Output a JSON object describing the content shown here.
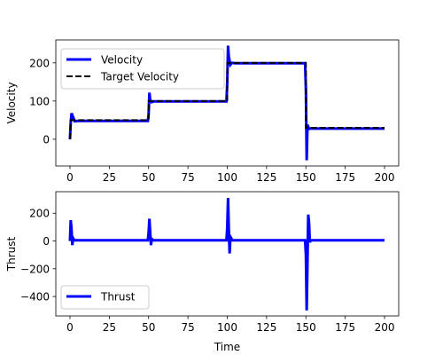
{
  "chart_data": [
    {
      "type": "line",
      "title": "",
      "xlabel": "",
      "ylabel": "Velocity",
      "xlim": [
        -9,
        209
      ],
      "ylim": [
        -70,
        260
      ],
      "xticks": [
        0,
        25,
        50,
        75,
        100,
        125,
        150,
        175,
        200
      ],
      "yticks": [
        0,
        100,
        200
      ],
      "grid": false,
      "legend": {
        "placement": "upper-left"
      },
      "series": [
        {
          "name": "Velocity",
          "color": "#0000ff",
          "style": "solid",
          "x": [
            0,
            0.5,
            1,
            2,
            3,
            5,
            10,
            20,
            30,
            40,
            49.5,
            50,
            50.5,
            51,
            52,
            53,
            55,
            60,
            70,
            80,
            90,
            99.5,
            100,
            100.5,
            101,
            102,
            103,
            105,
            110,
            120,
            130,
            140,
            149.5,
            150,
            150.5,
            151,
            152,
            153,
            155,
            160,
            170,
            180,
            190,
            200
          ],
          "y": [
            0,
            45,
            68,
            58,
            47,
            48,
            48,
            48,
            48,
            48,
            48,
            65,
            122,
            103,
            97,
            99,
            99,
            99,
            99,
            99,
            99,
            99,
            150,
            245,
            215,
            195,
            200,
            199,
            199,
            199,
            199,
            199,
            199,
            130,
            -55,
            38,
            27,
            28,
            28,
            28,
            28,
            28,
            28,
            28
          ]
        },
        {
          "name": "Target Velocity",
          "color": "#000000",
          "style": "dashed",
          "x": [
            0,
            0.5,
            50,
            50,
            100,
            100,
            150,
            150,
            200
          ],
          "y": [
            0,
            50,
            50,
            100,
            100,
            200,
            200,
            30,
            30
          ]
        }
      ]
    },
    {
      "type": "line",
      "title": "",
      "xlabel": "Time",
      "ylabel": "Thrust",
      "xlim": [
        -9,
        209
      ],
      "ylim": [
        -540,
        355
      ],
      "xticks": [
        0,
        25,
        50,
        75,
        100,
        125,
        150,
        175,
        200
      ],
      "yticks": [
        -400,
        -200,
        0,
        200
      ],
      "grid": false,
      "legend": {
        "placement": "lower-left"
      },
      "series": [
        {
          "name": "Thrust",
          "color": "#0000ff",
          "style": "solid",
          "x": [
            0,
            0.5,
            1,
            1.5,
            2,
            2.5,
            3,
            5,
            10,
            20,
            30,
            40,
            49.5,
            50,
            50.5,
            51,
            51.5,
            52,
            53,
            55,
            60,
            70,
            80,
            90,
            99.5,
            100,
            100.5,
            101,
            101.5,
            102,
            102.5,
            103,
            105,
            110,
            120,
            130,
            140,
            149.5,
            150,
            150.5,
            151,
            151.5,
            152,
            152.5,
            153,
            155,
            160,
            170,
            180,
            190,
            200
          ],
          "y": [
            0,
            150,
            80,
            -30,
            20,
            10,
            5,
            5,
            5,
            5,
            5,
            5,
            5,
            60,
            160,
            60,
            -30,
            15,
            5,
            5,
            5,
            5,
            5,
            5,
            5,
            100,
            310,
            80,
            -90,
            30,
            20,
            5,
            5,
            5,
            5,
            5,
            5,
            5,
            -100,
            -500,
            -150,
            190,
            130,
            -10,
            5,
            5,
            5,
            5,
            5,
            5,
            5
          ]
        }
      ]
    }
  ]
}
